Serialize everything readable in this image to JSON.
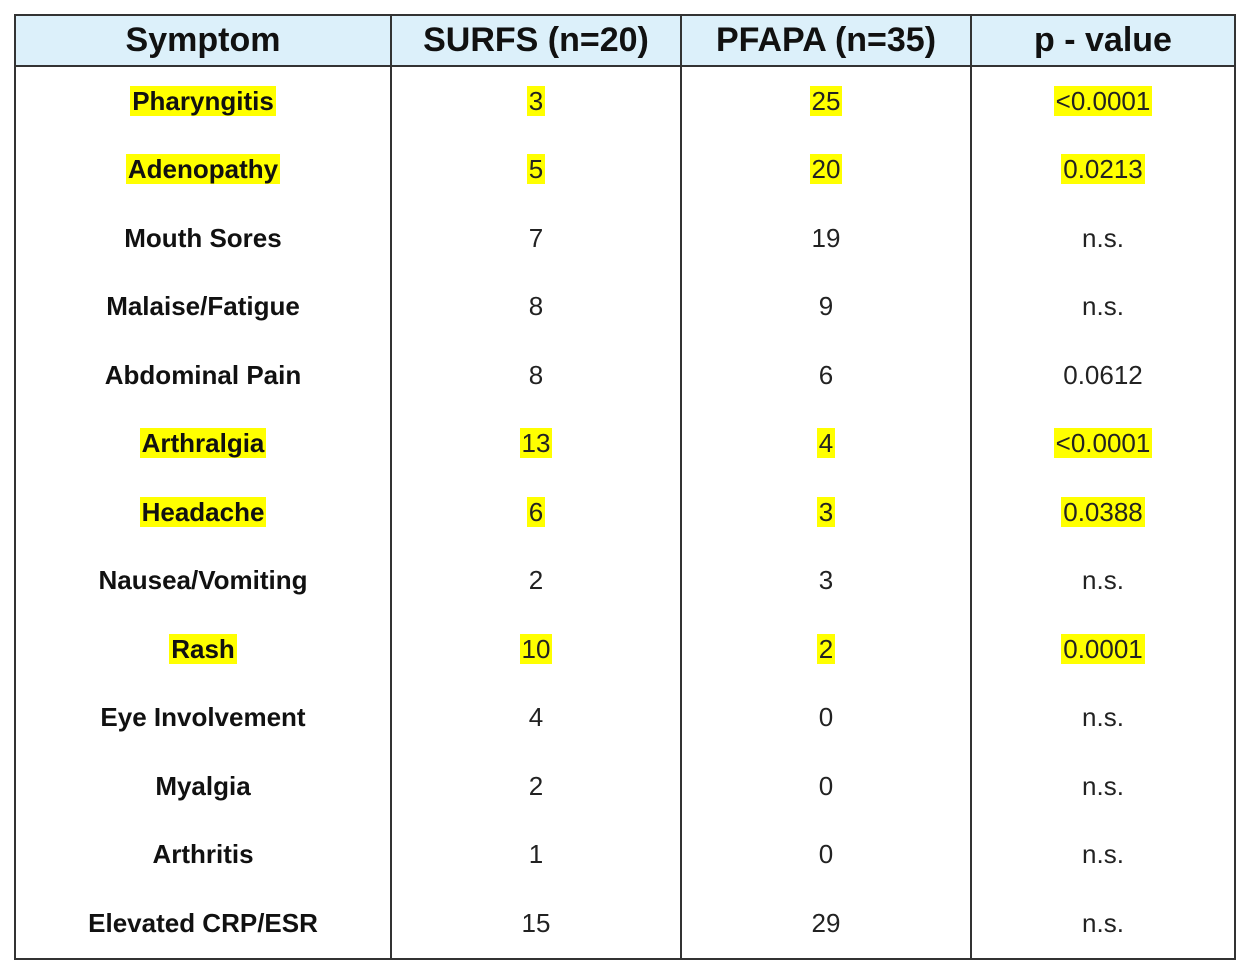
{
  "table": {
    "highlight_color": "#ffff00",
    "header_color": "#dcf0fa",
    "header": [
      "Symptom",
      "SURFS (n=20)",
      "PFAPA (n=35)",
      "p - value"
    ],
    "rows": [
      {
        "cells": [
          "Pharyngitis",
          3,
          25,
          "<0.0001"
        ],
        "highlighted": true
      },
      {
        "cells": [
          "Adenopathy",
          5,
          20,
          "0.0213"
        ],
        "highlighted": true
      },
      {
        "cells": [
          "Mouth Sores",
          7,
          19,
          "n.s."
        ],
        "highlighted": false
      },
      {
        "cells": [
          "Malaise/Fatigue",
          8,
          9,
          "n.s."
        ],
        "highlighted": false
      },
      {
        "cells": [
          "Abdominal Pain",
          8,
          6,
          "0.0612"
        ],
        "highlighted": false
      },
      {
        "cells": [
          "Arthralgia",
          13,
          4,
          "<0.0001"
        ],
        "highlighted": true
      },
      {
        "cells": [
          "Headache",
          6,
          3,
          "0.0388"
        ],
        "highlighted": true
      },
      {
        "cells": [
          "Nausea/Vomiting",
          2,
          3,
          "n.s."
        ],
        "highlighted": false
      },
      {
        "cells": [
          "Rash",
          10,
          2,
          "0.0001"
        ],
        "highlighted": true
      },
      {
        "cells": [
          "Eye Involvement",
          4,
          0,
          "n.s."
        ],
        "highlighted": false
      },
      {
        "cells": [
          "Myalgia",
          2,
          0,
          "n.s."
        ],
        "highlighted": false
      },
      {
        "cells": [
          "Arthritis",
          1,
          0,
          "n.s."
        ],
        "highlighted": false
      },
      {
        "cells": [
          "Elevated CRP/ESR",
          15,
          29,
          "n.s."
        ],
        "highlighted": false
      }
    ]
  }
}
